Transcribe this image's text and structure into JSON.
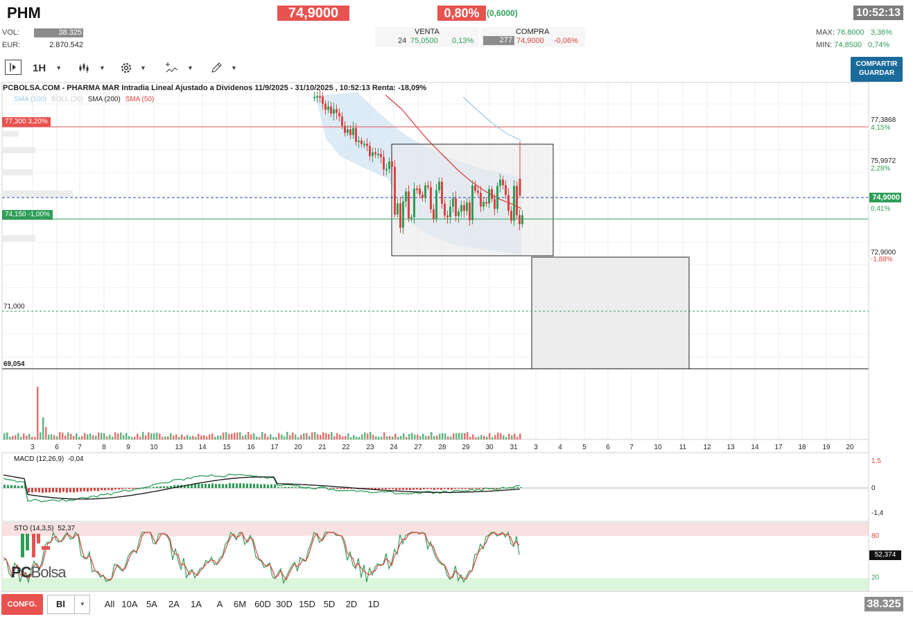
{
  "header": {
    "ticker": "PHM",
    "price": "74,9000",
    "pct": "0,80%",
    "change": "(0,6000)",
    "clock": "10:52:13"
  },
  "stats": {
    "vol_label": "VOL:",
    "vol_value": "38.325",
    "eur_label": "EUR:",
    "eur_value": "2.870.542"
  },
  "book": {
    "venta_label": "VENTA",
    "compra_label": "COMPRA",
    "venta_qty": "24",
    "venta_price": "75,0500",
    "venta_pct": "0,13%",
    "compra_qty": "277",
    "compra_price": "74,9000",
    "compra_pct": "-0,06%"
  },
  "range": {
    "max_label": "MAX:",
    "max_value": "76,8000",
    "max_pct": "3,36%",
    "min_label": "MIN:",
    "min_value": "74,8500",
    "min_pct": "0,74%"
  },
  "toolbar": {
    "interval": "1H",
    "share_line1": "COMPARTIR",
    "share_line2": "GUARDAR"
  },
  "chart": {
    "title": "PCBOLSA.COM - PHARMA MAR Intradia Lineal Ajustado a Dividenos 11/9/2025 - 31/10/2025 , 10:52:13 Renta: -18,09%",
    "legend": {
      "sma100": "SMA (100)",
      "boll": "BOLL (20)",
      "sma200": "SMA (200)",
      "sma50": "SMA (50)"
    },
    "axis_right": [
      {
        "value": "77,3868",
        "pct": "4,15%",
        "pct_color": "g"
      },
      {
        "value": "75,9972",
        "pct": "2,28%",
        "pct_color": "g"
      },
      {
        "value": "74,9000",
        "pct": "0,41%",
        "pct_color": "g"
      },
      {
        "value": "72,9000",
        "pct": "-1,88%",
        "pct_color": "r"
      }
    ],
    "tag_upper": "77,300  3,20%",
    "tag_lower": "74,150  -1,00%",
    "level_71": "71,000",
    "level_69": "69,054",
    "xlabels": [
      "3",
      "6",
      "7",
      "8",
      "9",
      "10",
      "13",
      "14",
      "15",
      "16",
      "17",
      "20",
      "21",
      "22",
      "23",
      "24",
      "27",
      "28",
      "29",
      "30",
      "31",
      "3",
      "4",
      "5",
      "6",
      "7",
      "10",
      "11",
      "12",
      "13",
      "14",
      "17",
      "18",
      "19",
      "20"
    ]
  },
  "macd": {
    "label": "MACD (12,26,9)",
    "value": "-0,04",
    "axis": [
      "1,5",
      "0",
      "-1,4"
    ]
  },
  "sto": {
    "label": "STO (14,3,5)",
    "value": "52,37",
    "axis_80": "80",
    "axis_20": "20",
    "current": "52,374"
  },
  "watermark": {
    "pc": "PC",
    "bolsa": "Bolsa"
  },
  "bottom": {
    "conf": "CONFG.",
    "type": "Bl",
    "timeframes": [
      "All",
      "10A",
      "5A",
      "2A",
      "1A",
      "A",
      "6M",
      "60D",
      "30D",
      "15D",
      "5D",
      "2D",
      "1D"
    ],
    "last": "38.325"
  },
  "colors": {
    "red": "#e8524f",
    "green": "#2e9d57",
    "blue_dash": "#2a3fa8",
    "boll": "#cfe3f3"
  }
}
